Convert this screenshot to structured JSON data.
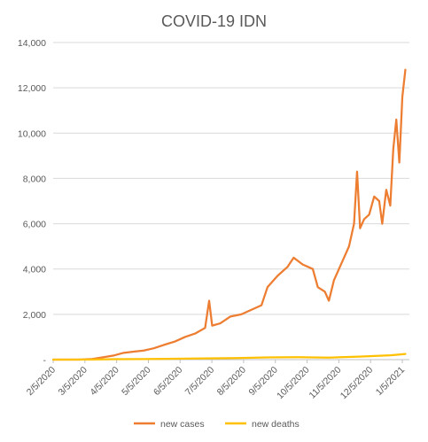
{
  "chart_data": {
    "type": "line",
    "title": "COVID-19 IDN",
    "xlabel": "",
    "ylabel": "",
    "ylim": [
      0,
      14000
    ],
    "y_ticks": [
      0,
      2000,
      4000,
      6000,
      8000,
      10000,
      12000,
      14000
    ],
    "y_tick_labels": [
      "-",
      "2,000",
      "4,000",
      "6,000",
      "8,000",
      "10,000",
      "12,000",
      "14,000"
    ],
    "x_tick_labels": [
      "2/5/2020",
      "3/5/2020",
      "4/5/2020",
      "5/5/2020",
      "6/5/2020",
      "7/5/2020",
      "8/5/2020",
      "9/5/2020",
      "10/5/2020",
      "11/5/2020",
      "12/5/2020",
      "1/5/2021"
    ],
    "x_range": [
      "2020-02-05",
      "2021-01-24"
    ],
    "grid": true,
    "legend_position": "bottom",
    "series": [
      {
        "name": "new cases",
        "color": "#ED7D31",
        "points": [
          [
            "2020-02-05",
            0
          ],
          [
            "2020-03-02",
            2
          ],
          [
            "2020-03-15",
            30
          ],
          [
            "2020-03-25",
            100
          ],
          [
            "2020-04-05",
            180
          ],
          [
            "2020-04-15",
            300
          ],
          [
            "2020-04-25",
            350
          ],
          [
            "2020-05-05",
            400
          ],
          [
            "2020-05-15",
            500
          ],
          [
            "2020-05-25",
            650
          ],
          [
            "2020-06-05",
            800
          ],
          [
            "2020-06-15",
            1000
          ],
          [
            "2020-06-25",
            1150
          ],
          [
            "2020-07-05",
            1400
          ],
          [
            "2020-07-09",
            2600
          ],
          [
            "2020-07-12",
            1500
          ],
          [
            "2020-07-20",
            1600
          ],
          [
            "2020-07-30",
            1900
          ],
          [
            "2020-08-10",
            2000
          ],
          [
            "2020-08-20",
            2200
          ],
          [
            "2020-08-30",
            2400
          ],
          [
            "2020-09-05",
            3200
          ],
          [
            "2020-09-15",
            3700
          ],
          [
            "2020-09-25",
            4100
          ],
          [
            "2020-10-01",
            4500
          ],
          [
            "2020-10-10",
            4200
          ],
          [
            "2020-10-20",
            4000
          ],
          [
            "2020-10-25",
            3200
          ],
          [
            "2020-11-01",
            3000
          ],
          [
            "2020-11-05",
            2600
          ],
          [
            "2020-11-10",
            3500
          ],
          [
            "2020-11-15",
            4000
          ],
          [
            "2020-11-20",
            4500
          ],
          [
            "2020-11-25",
            5000
          ],
          [
            "2020-11-30",
            6000
          ],
          [
            "2020-12-03",
            8300
          ],
          [
            "2020-12-06",
            5800
          ],
          [
            "2020-12-10",
            6200
          ],
          [
            "2020-12-15",
            6400
          ],
          [
            "2020-12-20",
            7200
          ],
          [
            "2020-12-25",
            7000
          ],
          [
            "2020-12-28",
            6000
          ],
          [
            "2021-01-01",
            7500
          ],
          [
            "2021-01-05",
            6800
          ],
          [
            "2021-01-08",
            9300
          ],
          [
            "2021-01-11",
            10600
          ],
          [
            "2021-01-14",
            8700
          ],
          [
            "2021-01-17",
            11600
          ],
          [
            "2021-01-20",
            12800
          ]
        ]
      },
      {
        "name": "new deaths",
        "color": "#FFC000",
        "points": [
          [
            "2020-02-05",
            0
          ],
          [
            "2020-03-15",
            5
          ],
          [
            "2020-04-05",
            20
          ],
          [
            "2020-05-05",
            25
          ],
          [
            "2020-06-05",
            40
          ],
          [
            "2020-07-05",
            55
          ],
          [
            "2020-08-05",
            70
          ],
          [
            "2020-09-05",
            100
          ],
          [
            "2020-10-05",
            110
          ],
          [
            "2020-11-05",
            90
          ],
          [
            "2020-12-05",
            130
          ],
          [
            "2021-01-05",
            190
          ],
          [
            "2021-01-20",
            250
          ]
        ]
      }
    ]
  }
}
